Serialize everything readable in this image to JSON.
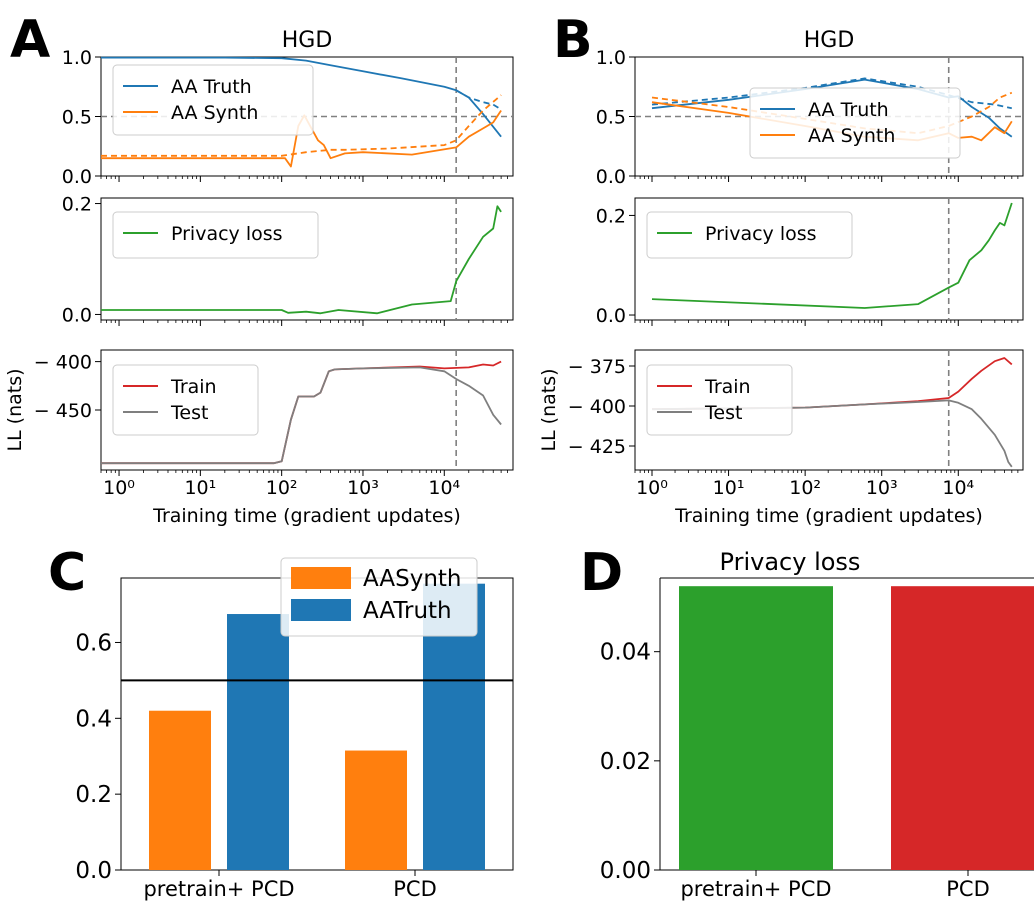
{
  "panel_labels": [
    "A",
    "B",
    "C",
    "D"
  ],
  "colors": {
    "truth": "#1f77b4",
    "synth": "#ff7f0e",
    "privacy": "#2ca02c",
    "train": "#d62728",
    "test": "#7f7f7f",
    "ref": "#808080"
  },
  "chart_data": [
    {
      "id": "A-top",
      "type": "line",
      "panel": "A",
      "title": "HGD",
      "xscale": "log",
      "xlim": [
        0.6,
        70000
      ],
      "ylim": [
        0,
        1
      ],
      "yticks": [
        0,
        0.5,
        1
      ],
      "ytick_labels": [
        "0.0",
        "0.5",
        "1.0"
      ],
      "xticks": [],
      "xtick_labels": [],
      "xlabel": "",
      "ylabel": "",
      "vline": 14000,
      "hline": 0.5,
      "legend_position": "upper-left",
      "series": [
        {
          "name": "AA Truth",
          "color": "truth",
          "style": "solid",
          "x": [
            0.6,
            20,
            100,
            200,
            400,
            1000,
            3000,
            10000,
            14000,
            20000,
            30000,
            50000
          ],
          "y": [
            0.995,
            0.995,
            0.99,
            0.97,
            0.93,
            0.88,
            0.82,
            0.75,
            0.72,
            0.66,
            0.52,
            0.33
          ]
        },
        {
          "name": "",
          "color": "truth",
          "style": "dashed",
          "x": [
            14000,
            20000,
            30000,
            40000,
            50000
          ],
          "y": [
            0.72,
            0.66,
            0.62,
            0.6,
            0.56
          ]
        },
        {
          "name": "AA Synth",
          "color": "synth",
          "style": "solid",
          "x": [
            0.6,
            50,
            110,
            130,
            160,
            190,
            280,
            330,
            400,
            600,
            1000,
            4000,
            14000,
            20000,
            30000,
            40000,
            50000
          ],
          "y": [
            0.15,
            0.15,
            0.15,
            0.08,
            0.42,
            0.51,
            0.3,
            0.26,
            0.15,
            0.19,
            0.2,
            0.18,
            0.24,
            0.33,
            0.4,
            0.45,
            0.55
          ]
        },
        {
          "name": "",
          "color": "synth",
          "style": "dashed",
          "x": [
            0.6,
            100,
            200,
            400,
            600,
            2000,
            10000,
            14000,
            20000,
            30000,
            50000
          ],
          "y": [
            0.17,
            0.17,
            0.2,
            0.22,
            0.22,
            0.23,
            0.26,
            0.3,
            0.42,
            0.55,
            0.68
          ]
        }
      ]
    },
    {
      "id": "A-mid",
      "type": "line",
      "panel": "A",
      "title": "",
      "xscale": "log",
      "xlim": [
        0.6,
        70000
      ],
      "ylim": [
        -0.01,
        0.21
      ],
      "yticks": [
        0,
        0.2
      ],
      "ytick_labels": [
        "0.0",
        "0.2"
      ],
      "xticks": [],
      "xtick_labels": [],
      "xlabel": "",
      "ylabel": "",
      "vline": 14000,
      "hline": null,
      "legend_position": "upper-left",
      "series": [
        {
          "name": "Privacy loss",
          "color": "privacy",
          "style": "solid",
          "x": [
            0.6,
            100,
            120,
            200,
            300,
            500,
            1500,
            4000,
            12000,
            14000,
            20000,
            30000,
            40000,
            45000,
            50000
          ],
          "y": [
            0.008,
            0.008,
            0.003,
            0.005,
            0.002,
            0.008,
            0.002,
            0.018,
            0.024,
            0.06,
            0.1,
            0.14,
            0.155,
            0.195,
            0.185
          ]
        }
      ]
    },
    {
      "id": "A-bot",
      "type": "line",
      "panel": "A",
      "title": "",
      "xscale": "log",
      "xlim": [
        0.6,
        70000
      ],
      "ylim": [
        -512,
        -388
      ],
      "yticks": [
        -450,
        -400
      ],
      "ytick_labels": [
        "− 450",
        "− 400"
      ],
      "xticks": [
        1,
        10,
        100,
        1000,
        10000
      ],
      "xtick_labels": [
        "10⁰",
        "10¹",
        "10²",
        "10³",
        "10⁴"
      ],
      "xlabel": "Training time (gradient updates)",
      "ylabel": "LL (nats)",
      "vline": 14000,
      "hline": null,
      "legend_position": "upper-left",
      "series": [
        {
          "name": "Train",
          "color": "train",
          "style": "solid",
          "x": [
            0.6,
            80,
            100,
            130,
            160,
            250,
            300,
            380,
            450,
            1000,
            5000,
            10000,
            20000,
            30000,
            40000,
            50000
          ],
          "y": [
            -505,
            -505,
            -503,
            -460,
            -436,
            -436,
            -432,
            -410,
            -408,
            -407,
            -405,
            -407,
            -406,
            -403,
            -404,
            -400
          ]
        },
        {
          "name": "Test",
          "color": "test",
          "style": "solid",
          "x": [
            0.6,
            80,
            100,
            130,
            160,
            250,
            300,
            380,
            450,
            1000,
            5000,
            10000,
            14000,
            20000,
            30000,
            40000,
            50000
          ],
          "y": [
            -505,
            -505,
            -503,
            -460,
            -436,
            -436,
            -432,
            -410,
            -408,
            -407,
            -406,
            -410,
            -418,
            -425,
            -435,
            -455,
            -465
          ]
        }
      ]
    },
    {
      "id": "B-top",
      "type": "line",
      "panel": "B",
      "title": "HGD",
      "xscale": "log",
      "xlim": [
        0.6,
        70000
      ],
      "ylim": [
        0,
        1
      ],
      "yticks": [
        0,
        0.5,
        1
      ],
      "ytick_labels": [
        "0.0",
        "0.5",
        "1.0"
      ],
      "xticks": [],
      "xtick_labels": [],
      "xlabel": "",
      "ylabel": "",
      "vline": 7500,
      "hline": 0.5,
      "legend_position": "center-right",
      "series": [
        {
          "name": "AA Truth",
          "color": "truth",
          "style": "solid",
          "x": [
            1,
            10,
            100,
            600,
            3000,
            7500,
            10000,
            15000,
            25000,
            35000,
            50000
          ],
          "y": [
            0.57,
            0.64,
            0.73,
            0.81,
            0.73,
            0.66,
            0.67,
            0.58,
            0.49,
            0.4,
            0.33
          ]
        },
        {
          "name": "",
          "color": "truth",
          "style": "dashed",
          "x": [
            1,
            10,
            100,
            600,
            3000,
            7500,
            15000,
            30000,
            50000
          ],
          "y": [
            0.6,
            0.66,
            0.74,
            0.82,
            0.75,
            0.68,
            0.62,
            0.6,
            0.57
          ]
        },
        {
          "name": "AA Synth",
          "color": "synth",
          "style": "solid",
          "x": [
            1,
            10,
            100,
            600,
            3000,
            7500,
            10000,
            15000,
            20000,
            30000,
            40000,
            50000
          ],
          "y": [
            0.62,
            0.53,
            0.42,
            0.33,
            0.3,
            0.36,
            0.32,
            0.33,
            0.3,
            0.41,
            0.36,
            0.46
          ]
        },
        {
          "name": "",
          "color": "synth",
          "style": "dashed",
          "x": [
            1,
            10,
            100,
            600,
            3000,
            7500,
            15000,
            25000,
            35000,
            50000
          ],
          "y": [
            0.66,
            0.58,
            0.48,
            0.4,
            0.36,
            0.42,
            0.5,
            0.58,
            0.66,
            0.7
          ]
        }
      ]
    },
    {
      "id": "B-mid",
      "type": "line",
      "panel": "B",
      "title": "",
      "xscale": "log",
      "xlim": [
        0.6,
        70000
      ],
      "ylim": [
        -0.01,
        0.235
      ],
      "yticks": [
        0,
        0.2
      ],
      "ytick_labels": [
        "0.0",
        "0.2"
      ],
      "xticks": [],
      "xtick_labels": [],
      "xlabel": "",
      "ylabel": "",
      "vline": 7500,
      "hline": null,
      "legend_position": "upper-left",
      "series": [
        {
          "name": "Privacy loss",
          "color": "privacy",
          "style": "solid",
          "x": [
            1,
            600,
            3000,
            7500,
            10000,
            14000,
            20000,
            25000,
            30000,
            35000,
            40000,
            50000
          ],
          "y": [
            0.032,
            0.014,
            0.022,
            0.055,
            0.065,
            0.11,
            0.13,
            0.15,
            0.17,
            0.185,
            0.18,
            0.225
          ]
        }
      ]
    },
    {
      "id": "B-bot",
      "type": "line",
      "panel": "B",
      "title": "",
      "xscale": "log",
      "xlim": [
        0.6,
        70000
      ],
      "ylim": [
        -440,
        -365
      ],
      "yticks": [
        -425,
        -400,
        -375
      ],
      "ytick_labels": [
        "− 425",
        "− 400",
        "− 375"
      ],
      "xticks": [
        1,
        10,
        100,
        1000,
        10000
      ],
      "xtick_labels": [
        "10⁰",
        "10¹",
        "10²",
        "10³",
        "10⁴"
      ],
      "xlabel": "Training time (gradient updates)",
      "ylabel": "LL (nats)",
      "vline": 7500,
      "hline": null,
      "legend_position": "upper-left",
      "series": [
        {
          "name": "Train",
          "color": "train",
          "style": "solid",
          "x": [
            1,
            100,
            600,
            3000,
            7500,
            10000,
            15000,
            20000,
            30000,
            40000,
            50000
          ],
          "y": [
            -402,
            -401,
            -399,
            -397,
            -395,
            -391,
            -383,
            -378,
            -372,
            -370,
            -374
          ]
        },
        {
          "name": "Test",
          "color": "test",
          "style": "solid",
          "x": [
            1,
            100,
            600,
            3000,
            7500,
            10000,
            15000,
            20000,
            30000,
            40000,
            45000,
            50000
          ],
          "y": [
            -402,
            -401,
            -399,
            -397.5,
            -396.5,
            -398,
            -402,
            -408,
            -418,
            -428,
            -435,
            -438
          ]
        }
      ]
    },
    {
      "id": "C",
      "type": "bar",
      "panel": "C",
      "title": "",
      "categories": [
        "pretrain+ PCD",
        "PCD"
      ],
      "ylim": [
        0,
        0.77
      ],
      "yticks": [
        0,
        0.2,
        0.4,
        0.6
      ],
      "ytick_labels": [
        "0.0",
        "0.2",
        "0.4",
        "0.6"
      ],
      "hline": 0.5,
      "legend_position": "top-center",
      "series": [
        {
          "name": "AASynth",
          "color": "synth",
          "values": [
            0.42,
            0.315
          ]
        },
        {
          "name": "AATruth",
          "color": "truth",
          "values": [
            0.675,
            0.755
          ]
        }
      ]
    },
    {
      "id": "D",
      "type": "bar",
      "panel": "D",
      "title": "Privacy loss",
      "categories": [
        "pretrain+ PCD",
        "PCD"
      ],
      "ylim": [
        0,
        0.0535
      ],
      "yticks": [
        0,
        0.02,
        0.04
      ],
      "ytick_labels": [
        "0.00",
        "0.02",
        "0.04"
      ],
      "values": [
        0.052,
        0.052
      ],
      "bar_colors": [
        "privacy",
        "train"
      ]
    }
  ]
}
